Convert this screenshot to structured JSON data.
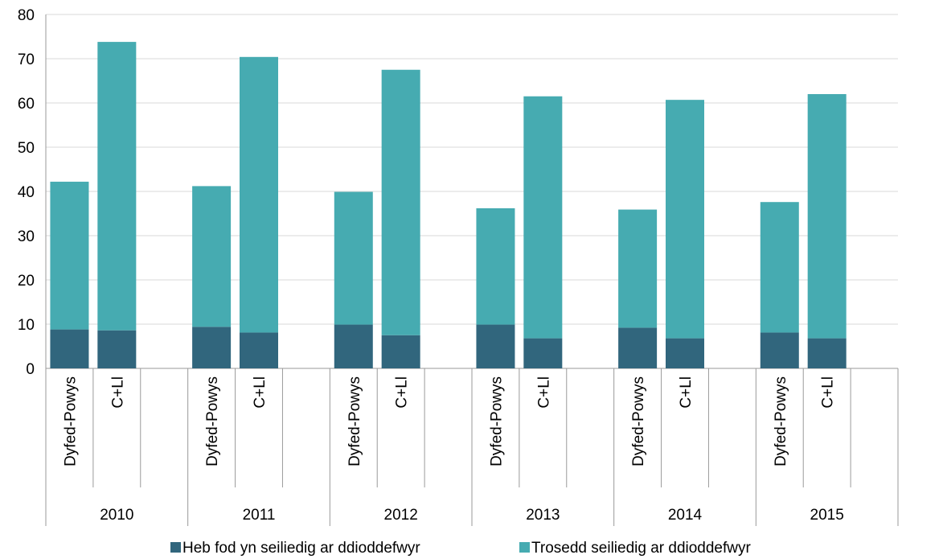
{
  "chart_data": {
    "type": "bar",
    "stacked": true,
    "title": "",
    "xlabel": "",
    "ylabel": "",
    "ylim": [
      0,
      80
    ],
    "yticks": [
      0,
      10,
      20,
      30,
      40,
      50,
      60,
      70,
      80
    ],
    "grid": true,
    "legend_position": "bottom",
    "colors": [
      "#31667d",
      "#46abb1"
    ],
    "years": [
      "2010",
      "2011",
      "2012",
      "2013",
      "2014",
      "2015"
    ],
    "categories": [
      "Dyfed-Powys",
      "C+Ll"
    ],
    "series": [
      {
        "name": "Heb fod yn seiliedig ar ddioddefwyr",
        "values": [
          [
            8.8,
            8.6
          ],
          [
            9.4,
            8.1
          ],
          [
            9.9,
            7.5
          ],
          [
            9.9,
            6.8
          ],
          [
            9.2,
            6.8
          ],
          [
            8.1,
            6.8
          ]
        ]
      },
      {
        "name": "Trosedd seiliedig ar ddioddefwyr",
        "values": [
          [
            33.4,
            65.2
          ],
          [
            31.8,
            62.3
          ],
          [
            30.0,
            60.0
          ],
          [
            26.3,
            54.7
          ],
          [
            26.7,
            53.9
          ],
          [
            29.5,
            55.2
          ]
        ]
      }
    ]
  }
}
